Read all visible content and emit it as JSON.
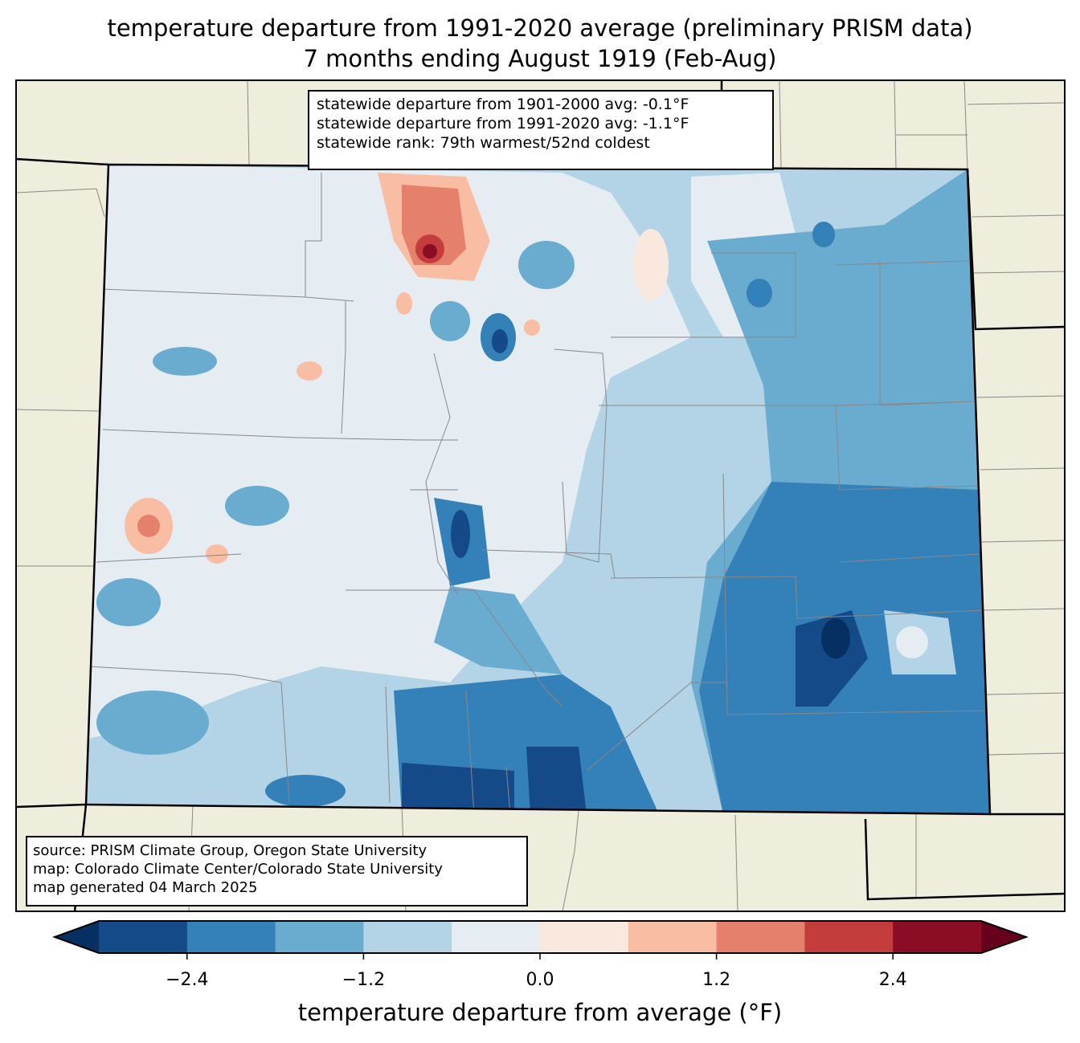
{
  "title": {
    "line1": "temperature departure from 1991-2020 average (preliminary PRISM data)",
    "line2": "7 months ending August 1919 (Feb-Aug)"
  },
  "stats": {
    "line1": "statewide departure from 1901-2000 avg: -0.1°F",
    "line2": "statewide departure from 1991-2020 avg: -1.1°F",
    "line3": "statewide rank: 79th warmest/52nd coldest"
  },
  "source": {
    "line1": "source: PRISM Climate Group, Oregon State University",
    "line2": "map: Colorado Climate Center/Colorado State University",
    "line3": "map generated 04 March 2025"
  },
  "chart_data": {
    "type": "heatmap",
    "region": "Colorado",
    "colorbar": {
      "label": "temperature departure from average (°F)",
      "levels": [
        -3.0,
        -2.4,
        -1.8,
        -1.2,
        -0.6,
        0.0,
        0.6,
        1.2,
        1.8,
        2.4,
        3.0
      ],
      "ticks": [
        "−2.4",
        "−1.2",
        "0.0",
        "1.2",
        "2.4"
      ],
      "tick_values": [
        -2.4,
        -1.2,
        0.0,
        1.2,
        2.4
      ],
      "colors": [
        "#144a87",
        "#3480b9",
        "#6aacd0",
        "#b3d4e6",
        "#e5edf3",
        "#f9e8de",
        "#f9bda3",
        "#e4806b",
        "#c43c3c",
        "#8a0c25"
      ],
      "under_color": "#053061",
      "over_color": "#67001f",
      "extend": "both"
    }
  }
}
